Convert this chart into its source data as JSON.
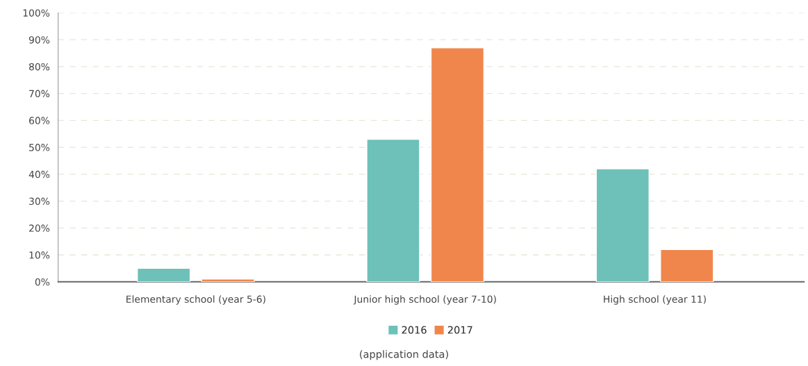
{
  "chart_data": {
    "type": "bar",
    "categories": [
      "Elementary school (year 5-6)",
      "Junior high school (year 7-10)",
      "High school (year 11)"
    ],
    "series": [
      {
        "name": "2016",
        "color": "#6dc1b9",
        "values": [
          5,
          53,
          42
        ]
      },
      {
        "name": "2017",
        "color": "#f0864b",
        "values": [
          1,
          87,
          12
        ]
      }
    ],
    "ylim": [
      0,
      100
    ],
    "yticks": [
      {
        "value": 0,
        "label": "0%"
      },
      {
        "value": 10,
        "label": "10%"
      },
      {
        "value": 20,
        "label": "20%"
      },
      {
        "value": 30,
        "label": "30%"
      },
      {
        "value": 40,
        "label": "40%"
      },
      {
        "value": 50,
        "label": "50%"
      },
      {
        "value": 60,
        "label": "60%"
      },
      {
        "value": 70,
        "label": "70%"
      },
      {
        "value": 80,
        "label": "80%"
      },
      {
        "value": 90,
        "label": "90%"
      },
      {
        "value": 100,
        "label": "100%"
      }
    ],
    "grid": "y",
    "legend": "bottom",
    "annotations": [
      "(application data)"
    ]
  }
}
